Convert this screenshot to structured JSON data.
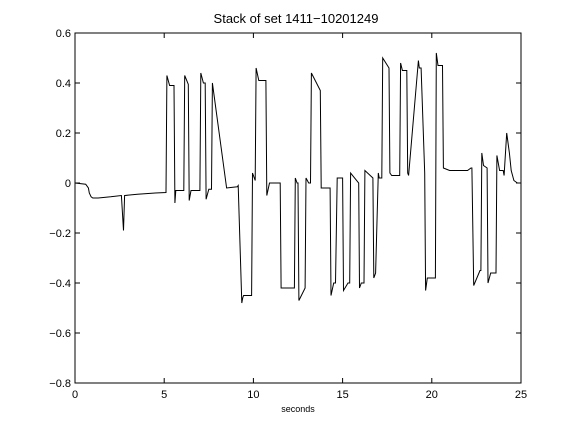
{
  "chart_data": {
    "type": "line",
    "title": "Stack of set 1411−10201249",
    "xlabel": "seconds",
    "ylabel": "",
    "xlim": [
      0,
      25
    ],
    "ylim": [
      -0.8,
      0.6
    ],
    "xticks": [
      0,
      5,
      10,
      15,
      20,
      25
    ],
    "yticks": [
      -0.8,
      -0.6,
      -0.4,
      -0.2,
      0,
      0.2,
      0.4,
      0.6
    ],
    "xtick_labels": [
      "0",
      "5",
      "10",
      "15",
      "20",
      "25"
    ],
    "ytick_labels": [
      "−0.8",
      "−0.6",
      "−0.4",
      "−0.2",
      "0",
      "0.2",
      "0.4",
      "0.6"
    ],
    "grid": false,
    "line_color": "#000000",
    "series": [
      {
        "x": [
          0,
          0.6,
          0.75,
          0.8,
          0.9,
          1.0,
          1.3,
          2.0,
          2.6,
          2.72,
          2.78,
          2.8,
          3.5,
          4.5,
          5.1,
          5.15,
          5.3,
          5.55,
          5.6,
          5.65,
          5.75,
          6.1,
          6.15,
          6.35,
          6.4,
          6.5,
          7.0,
          7.05,
          7.2,
          7.3,
          7.35,
          7.5,
          7.65,
          7.7,
          8.5,
          9.1,
          9.15,
          9.35,
          9.4,
          9.45,
          9.5,
          9.9,
          9.95,
          10.05,
          10.1,
          10.15,
          10.3,
          10.7,
          10.75,
          10.9,
          11.0,
          11.05,
          11.5,
          11.55,
          11.7,
          11.75,
          12.3,
          12.35,
          12.45,
          12.5,
          12.55,
          12.9,
          12.95,
          13.1,
          13.2,
          13.25,
          13.75,
          13.8,
          14.0,
          14.3,
          14.35,
          14.5,
          14.6,
          14.7,
          15.0,
          15.05,
          15.3,
          15.4,
          15.45,
          15.9,
          15.95,
          16.05,
          16.2,
          16.25,
          16.7,
          16.75,
          16.85,
          17.0,
          17.05,
          17.2,
          17.25,
          17.6,
          17.65,
          17.75,
          18.2,
          18.25,
          18.35,
          18.6,
          18.65,
          18.7,
          19.25,
          19.3,
          19.4,
          19.6,
          19.65,
          19.75,
          20.2,
          20.25,
          20.35,
          20.6,
          20.65,
          21.0,
          22.0,
          22.2,
          22.25,
          22.35,
          22.7,
          22.75,
          22.8,
          22.9,
          23.1,
          23.15,
          23.3,
          23.6,
          23.65,
          23.8,
          24.0,
          24.05,
          24.2,
          24.35,
          24.45,
          24.6,
          24.8,
          25.0
        ],
        "y": [
          0.0,
          -0.005,
          -0.02,
          -0.04,
          -0.055,
          -0.06,
          -0.06,
          -0.055,
          -0.05,
          -0.19,
          -0.05,
          -0.05,
          -0.045,
          -0.04,
          -0.038,
          0.43,
          0.39,
          0.39,
          -0.08,
          -0.03,
          -0.03,
          -0.03,
          0.43,
          0.395,
          -0.07,
          -0.03,
          -0.03,
          0.44,
          0.4,
          0.4,
          -0.065,
          -0.025,
          -0.025,
          0.4,
          -0.02,
          -0.015,
          -0.01,
          -0.48,
          -0.46,
          -0.45,
          -0.45,
          -0.45,
          0.04,
          0.02,
          0.01,
          0.46,
          0.41,
          0.41,
          -0.05,
          0.0,
          0.0,
          0.0,
          0.0,
          -0.42,
          -0.42,
          -0.42,
          -0.42,
          0.02,
          0.0,
          0.0,
          -0.47,
          -0.42,
          0.02,
          0.0,
          0.0,
          0.44,
          0.37,
          -0.02,
          -0.02,
          -0.02,
          -0.45,
          -0.4,
          -0.4,
          0.02,
          0.02,
          -0.43,
          -0.4,
          -0.4,
          0.04,
          0.0,
          -0.42,
          -0.4,
          -0.4,
          0.05,
          0.02,
          -0.38,
          -0.36,
          0.04,
          0.02,
          0.02,
          0.5,
          0.46,
          0.04,
          0.03,
          0.03,
          0.48,
          0.45,
          0.45,
          0.04,
          0.03,
          0.49,
          0.46,
          0.46,
          0.04,
          -0.43,
          -0.38,
          -0.38,
          0.52,
          0.47,
          0.47,
          0.06,
          0.05,
          0.05,
          0.06,
          0.06,
          -0.41,
          -0.35,
          -0.35,
          0.12,
          0.07,
          0.06,
          -0.4,
          -0.36,
          -0.36,
          0.11,
          0.05,
          0.05,
          0.03,
          0.2,
          0.12,
          0.05,
          0.01,
          0.0,
          0.0
        ]
      }
    ]
  }
}
